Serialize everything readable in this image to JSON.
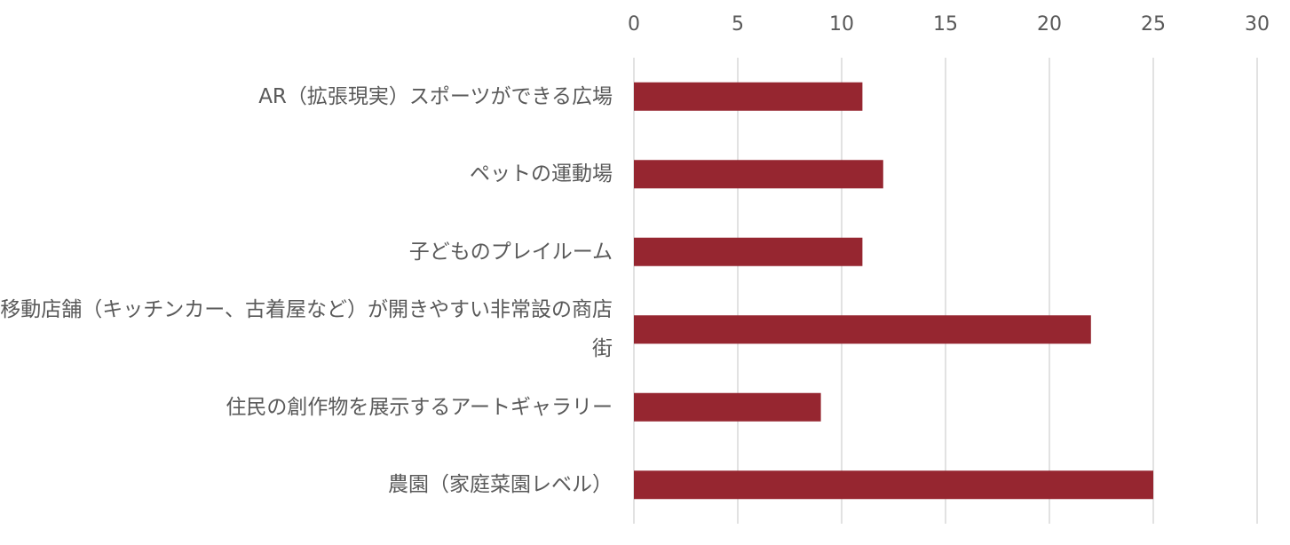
{
  "chart_data": {
    "type": "barh",
    "categories": [
      "AR（拡張現実）スポーツができる広場",
      "ペットの運動場",
      "子どものプレイルーム",
      "移動店舗（キッチンカー、古着屋など）が開きやすい非常設の商店街",
      "住民の創作物を展示するアートギャラリー",
      "農園（家庭菜園レベル）"
    ],
    "values": [
      11,
      12,
      11,
      22,
      9,
      25
    ],
    "color": "#962630",
    "xlim": [
      0,
      30
    ],
    "xticks": [
      0,
      5,
      10,
      15,
      20,
      25,
      30
    ],
    "grid": true
  }
}
